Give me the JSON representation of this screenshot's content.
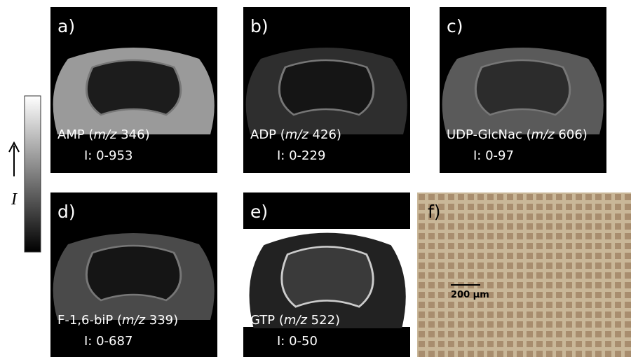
{
  "panels": [
    {
      "label": "a)",
      "compound": "AMP (",
      "mz_label": "m/z",
      "mz": " 346)",
      "intensity": "I: 0-953"
    },
    {
      "label": "b)",
      "compound": "ADP (",
      "mz_label": "m/z",
      "mz": " 426)",
      "intensity": "I: 0-229"
    },
    {
      "label": "c)",
      "compound": "UDP-GlcNac (",
      "mz_label": "m/z",
      "mz": " 606)",
      "intensity": "I: 0-97"
    },
    {
      "label": "d)",
      "compound": "F-1,6-biP (",
      "mz_label": "m/z",
      "mz": " 339)",
      "intensity": "I: 0-687"
    },
    {
      "label": "e)",
      "compound": "GTP (",
      "mz_label": "m/z",
      "mz": " 522)",
      "intensity": "I: 0-50"
    }
  ],
  "photo": {
    "label": "f)",
    "scale_bar": "200 µm"
  },
  "colorbar": {
    "label": "I"
  }
}
